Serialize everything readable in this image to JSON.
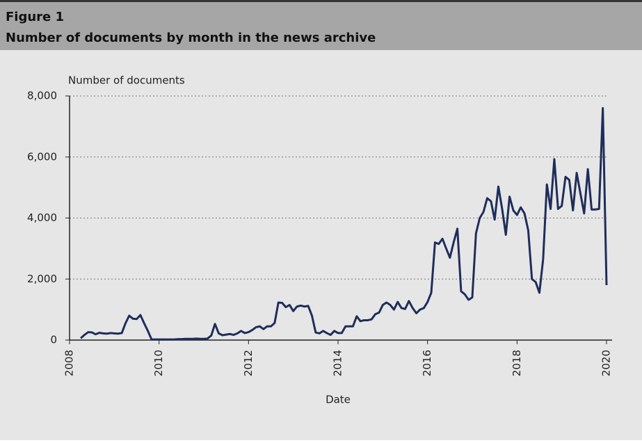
{
  "figure_label": "Figure 1",
  "chart_data": {
    "type": "line",
    "title": "Number of documents by month in the news archive",
    "y_label": "Number of documents",
    "x_label": "Date",
    "color": "#1f2d5a",
    "grid": true,
    "xlim": [
      2008,
      2020
    ],
    "xticks": [
      2008,
      2010,
      2012,
      2014,
      2016,
      2018,
      2020
    ],
    "ylim": [
      0,
      8000
    ],
    "yticks": [
      0,
      {
        "value": 2000,
        "label": "2,000"
      },
      {
        "value": 4000,
        "label": "4,000"
      },
      {
        "value": 6000,
        "label": "6,000"
      },
      {
        "value": 8000,
        "label": "8,000"
      }
    ],
    "x": [
      2008.25,
      2008.333,
      2008.417,
      2008.5,
      2008.583,
      2008.667,
      2008.75,
      2008.833,
      2008.917,
      2009,
      2009.083,
      2009.167,
      2009.25,
      2009.333,
      2009.417,
      2009.5,
      2009.583,
      2009.667,
      2009.75,
      2009.833,
      2009.917,
      2010,
      2010.083,
      2010.167,
      2010.25,
      2010.333,
      2010.417,
      2010.5,
      2010.583,
      2010.667,
      2010.75,
      2010.833,
      2010.917,
      2011,
      2011.083,
      2011.167,
      2011.25,
      2011.333,
      2011.417,
      2011.5,
      2011.583,
      2011.667,
      2011.75,
      2011.833,
      2011.917,
      2012,
      2012.083,
      2012.167,
      2012.25,
      2012.333,
      2012.417,
      2012.5,
      2012.583,
      2012.667,
      2012.75,
      2012.833,
      2012.917,
      2013,
      2013.083,
      2013.167,
      2013.25,
      2013.333,
      2013.417,
      2013.5,
      2013.583,
      2013.667,
      2013.75,
      2013.833,
      2013.917,
      2014,
      2014.083,
      2014.167,
      2014.25,
      2014.333,
      2014.417,
      2014.5,
      2014.583,
      2014.667,
      2014.75,
      2014.833,
      2014.917,
      2015,
      2015.083,
      2015.167,
      2015.25,
      2015.333,
      2015.417,
      2015.5,
      2015.583,
      2015.667,
      2015.75,
      2015.833,
      2015.917,
      2016,
      2016.083,
      2016.167,
      2016.25,
      2016.333,
      2016.417,
      2016.5,
      2016.583,
      2016.667,
      2016.75,
      2016.833,
      2016.917,
      2017,
      2017.083,
      2017.167,
      2017.25,
      2017.333,
      2017.417,
      2017.5,
      2017.583,
      2017.667,
      2017.75,
      2017.833,
      2017.917,
      2018,
      2018.083,
      2018.167,
      2018.25,
      2018.333,
      2018.417,
      2018.5,
      2018.583,
      2018.667,
      2018.75,
      2018.833,
      2018.917,
      2019,
      2019.083,
      2019.167,
      2019.25,
      2019.333,
      2019.417,
      2019.5,
      2019.583,
      2019.667,
      2019.75,
      2019.833,
      2019.917,
      2020
    ],
    "values": [
      60,
      170,
      260,
      250,
      190,
      240,
      220,
      210,
      230,
      220,
      210,
      230,
      550,
      800,
      700,
      690,
      820,
      550,
      300,
      20,
      20,
      20,
      20,
      20,
      20,
      20,
      30,
      30,
      40,
      40,
      40,
      50,
      40,
      40,
      50,
      150,
      530,
      220,
      160,
      180,
      200,
      170,
      220,
      300,
      230,
      260,
      330,
      420,
      450,
      360,
      450,
      450,
      560,
      1230,
      1220,
      1080,
      1150,
      950,
      1100,
      1130,
      1100,
      1120,
      800,
      250,
      220,
      300,
      230,
      170,
      300,
      230,
      230,
      450,
      450,
      450,
      780,
      620,
      650,
      650,
      680,
      850,
      900,
      1150,
      1230,
      1150,
      1000,
      1250,
      1050,
      1020,
      1280,
      1050,
      880,
      1000,
      1050,
      1250,
      1550,
      3200,
      3150,
      3320,
      3000,
      2700,
      3200,
      3650,
      1600,
      1500,
      1320,
      1400,
      3500,
      4000,
      4200,
      4650,
      4550,
      3950,
      5030,
      4300,
      3450,
      4700,
      4250,
      4100,
      4350,
      4150,
      3600,
      2000,
      1900,
      1550,
      2650,
      5100,
      4300,
      5930,
      4300,
      4400,
      5350,
      5250,
      4250,
      5480,
      4800,
      4150,
      5600,
      4280,
      4280,
      4300,
      7600,
      1800
    ]
  }
}
